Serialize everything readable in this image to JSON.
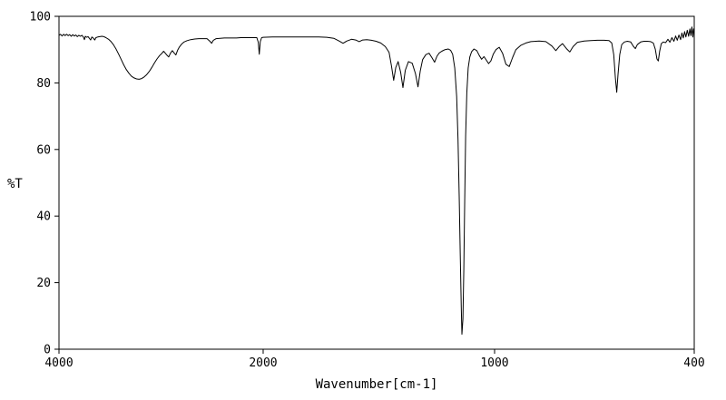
{
  "figure": {
    "background": "#ffffff",
    "line_color": "#000000",
    "kind": "infrared-transmittance-spectrum"
  },
  "chart_data": {
    "type": "line",
    "title": "",
    "xlabel": "Wavenumber[cm-1]",
    "ylabel": "%T",
    "xlim": [
      4000,
      400
    ],
    "ylim": [
      0,
      100
    ],
    "grid": false,
    "legend": "none",
    "x_axis_direction": "high-to-low left-to-right",
    "x_scale": "piecewise-linear (compressed above 2000 cm-1)",
    "x_ticks": [
      {
        "value": 4000,
        "label": "4000",
        "pos": 0.0
      },
      {
        "value": 2000,
        "label": "2000",
        "pos": 0.3214
      },
      {
        "value": 1000,
        "label": "1000",
        "pos": 0.6857
      },
      {
        "value": 400,
        "label": "400",
        "pos": 1.0
      }
    ],
    "y_ticks": [
      {
        "value": 100,
        "label": "100"
      },
      {
        "value": 80,
        "label": "80"
      },
      {
        "value": 60,
        "label": "60"
      },
      {
        "value": 40,
        "label": "40"
      },
      {
        "value": 20,
        "label": "20"
      },
      {
        "value": 0,
        "label": "0"
      }
    ],
    "baseline_percentT": 94,
    "major_absorption_bands_cm1": [
      {
        "center": 3200,
        "minT": 81,
        "shape": "broad"
      },
      {
        "center": 2925,
        "minT": 88,
        "shape": "sharp"
      },
      {
        "center": 2855,
        "minT": 88,
        "shape": "sharp"
      },
      {
        "center": 2038,
        "minT": 88.6,
        "shape": "narrow spike"
      },
      {
        "center": 1436,
        "minT": 80.8,
        "shape": "sharp"
      },
      {
        "center": 1396,
        "minT": 78.6,
        "shape": "sharp"
      },
      {
        "center": 1331,
        "minT": 78.8,
        "shape": "sharp"
      },
      {
        "center": 1259,
        "minT": 86.2,
        "shape": "sharp"
      },
      {
        "center": 1141,
        "minT": 4.5,
        "shape": "very strong sharp"
      },
      {
        "center": 1026,
        "minT": 85.8,
        "shape": "medium"
      },
      {
        "center": 956,
        "minT": 84.9,
        "shape": "medium"
      },
      {
        "center": 633,
        "minT": 77.2,
        "shape": "sharp"
      },
      {
        "center": 508,
        "minT": 86.6,
        "shape": "small"
      }
    ],
    "points": [
      [
        4000,
        94.3
      ],
      [
        3985,
        94.6
      ],
      [
        3970,
        94.1
      ],
      [
        3955,
        94.6
      ],
      [
        3940,
        94.2
      ],
      [
        3925,
        94.6
      ],
      [
        3910,
        94.2
      ],
      [
        3895,
        94.5
      ],
      [
        3880,
        94.0
      ],
      [
        3865,
        94.5
      ],
      [
        3850,
        94.1
      ],
      [
        3835,
        94.4
      ],
      [
        3820,
        93.9
      ],
      [
        3805,
        94.3
      ],
      [
        3790,
        94.0
      ],
      [
        3775,
        94.3
      ],
      [
        3760,
        93.7
      ],
      [
        3751,
        93.0
      ],
      [
        3742,
        94.0
      ],
      [
        3730,
        93.7
      ],
      [
        3715,
        93.9
      ],
      [
        3700,
        93.3
      ],
      [
        3690,
        92.9
      ],
      [
        3678,
        93.8
      ],
      [
        3665,
        93.5
      ],
      [
        3650,
        92.9
      ],
      [
        3638,
        93.6
      ],
      [
        3620,
        93.8
      ],
      [
        3600,
        93.9
      ],
      [
        3580,
        94.0
      ],
      [
        3560,
        93.9
      ],
      [
        3540,
        93.6
      ],
      [
        3515,
        93.1
      ],
      [
        3490,
        92.4
      ],
      [
        3465,
        91.4
      ],
      [
        3440,
        90.1
      ],
      [
        3415,
        88.6
      ],
      [
        3390,
        87.0
      ],
      [
        3365,
        85.4
      ],
      [
        3340,
        84.0
      ],
      [
        3315,
        82.9
      ],
      [
        3290,
        82.0
      ],
      [
        3265,
        81.5
      ],
      [
        3240,
        81.2
      ],
      [
        3215,
        81.1
      ],
      [
        3190,
        81.3
      ],
      [
        3165,
        81.8
      ],
      [
        3140,
        82.5
      ],
      [
        3115,
        83.5
      ],
      [
        3090,
        84.7
      ],
      [
        3065,
        86.0
      ],
      [
        3040,
        87.2
      ],
      [
        3015,
        88.2
      ],
      [
        2995,
        88.8
      ],
      [
        2975,
        89.5
      ],
      [
        2958,
        88.9
      ],
      [
        2942,
        88.3
      ],
      [
        2925,
        87.8
      ],
      [
        2908,
        88.9
      ],
      [
        2890,
        89.7
      ],
      [
        2872,
        89.0
      ],
      [
        2855,
        88.4
      ],
      [
        2838,
        89.8
      ],
      [
        2820,
        90.8
      ],
      [
        2800,
        91.6
      ],
      [
        2775,
        92.3
      ],
      [
        2745,
        92.7
      ],
      [
        2710,
        93.0
      ],
      [
        2670,
        93.2
      ],
      [
        2630,
        93.3
      ],
      [
        2590,
        93.3
      ],
      [
        2550,
        93.3
      ],
      [
        2522,
        92.5
      ],
      [
        2505,
        91.9
      ],
      [
        2488,
        92.8
      ],
      [
        2460,
        93.3
      ],
      [
        2420,
        93.4
      ],
      [
        2380,
        93.5
      ],
      [
        2340,
        93.5
      ],
      [
        2300,
        93.5
      ],
      [
        2260,
        93.5
      ],
      [
        2220,
        93.6
      ],
      [
        2180,
        93.6
      ],
      [
        2140,
        93.6
      ],
      [
        2100,
        93.6
      ],
      [
        2062,
        93.6
      ],
      [
        2048,
        92.2
      ],
      [
        2038,
        88.6
      ],
      [
        2028,
        92.4
      ],
      [
        2015,
        93.6
      ],
      [
        2000,
        93.7
      ],
      [
        1960,
        93.8
      ],
      [
        1920,
        93.8
      ],
      [
        1880,
        93.8
      ],
      [
        1840,
        93.8
      ],
      [
        1800,
        93.8
      ],
      [
        1760,
        93.8
      ],
      [
        1725,
        93.7
      ],
      [
        1695,
        93.4
      ],
      [
        1672,
        92.6
      ],
      [
        1655,
        91.9
      ],
      [
        1638,
        92.6
      ],
      [
        1618,
        93.1
      ],
      [
        1600,
        92.9
      ],
      [
        1585,
        92.4
      ],
      [
        1570,
        92.9
      ],
      [
        1552,
        93.0
      ],
      [
        1532,
        92.8
      ],
      [
        1512,
        92.5
      ],
      [
        1492,
        92.0
      ],
      [
        1472,
        90.9
      ],
      [
        1456,
        89.2
      ],
      [
        1446,
        85.2
      ],
      [
        1436,
        80.8
      ],
      [
        1427,
        84.6
      ],
      [
        1417,
        86.4
      ],
      [
        1406,
        83.2
      ],
      [
        1396,
        78.6
      ],
      [
        1386,
        83.8
      ],
      [
        1372,
        86.4
      ],
      [
        1356,
        85.9
      ],
      [
        1342,
        82.8
      ],
      [
        1331,
        78.8
      ],
      [
        1321,
        83.6
      ],
      [
        1311,
        87.0
      ],
      [
        1297,
        88.5
      ],
      [
        1283,
        88.9
      ],
      [
        1271,
        87.6
      ],
      [
        1259,
        86.2
      ],
      [
        1249,
        88.0
      ],
      [
        1239,
        89.0
      ],
      [
        1228,
        89.5
      ],
      [
        1214,
        90.0
      ],
      [
        1200,
        90.2
      ],
      [
        1190,
        89.8
      ],
      [
        1181,
        88.6
      ],
      [
        1172,
        84.5
      ],
      [
        1164,
        76.0
      ],
      [
        1158,
        63.0
      ],
      [
        1153,
        46.0
      ],
      [
        1148,
        28.0
      ],
      [
        1144,
        12.5
      ],
      [
        1141,
        4.5
      ],
      [
        1137,
        9.0
      ],
      [
        1133,
        24.0
      ],
      [
        1129,
        45.0
      ],
      [
        1125,
        64.0
      ],
      [
        1120,
        77.0
      ],
      [
        1114,
        84.5
      ],
      [
        1107,
        87.8
      ],
      [
        1099,
        89.4
      ],
      [
        1089,
        90.2
      ],
      [
        1077,
        89.7
      ],
      [
        1066,
        88.2
      ],
      [
        1056,
        87.1
      ],
      [
        1046,
        87.9
      ],
      [
        1036,
        86.9
      ],
      [
        1026,
        85.8
      ],
      [
        1016,
        86.6
      ],
      [
        1006,
        88.6
      ],
      [
        996,
        90.0
      ],
      [
        986,
        90.7
      ],
      [
        976,
        88.9
      ],
      [
        966,
        85.6
      ],
      [
        956,
        84.9
      ],
      [
        946,
        87.6
      ],
      [
        936,
        90.0
      ],
      [
        921,
        91.3
      ],
      [
        906,
        92.0
      ],
      [
        891,
        92.4
      ],
      [
        866,
        92.6
      ],
      [
        846,
        92.4
      ],
      [
        828,
        91.1
      ],
      [
        816,
        89.7
      ],
      [
        806,
        90.9
      ],
      [
        796,
        91.8
      ],
      [
        784,
        90.3
      ],
      [
        774,
        89.3
      ],
      [
        764,
        90.9
      ],
      [
        751,
        92.2
      ],
      [
        731,
        92.6
      ],
      [
        711,
        92.7
      ],
      [
        691,
        92.8
      ],
      [
        671,
        92.8
      ],
      [
        656,
        92.7
      ],
      [
        648,
        92.0
      ],
      [
        642,
        88.5
      ],
      [
        637,
        81.5
      ],
      [
        633,
        77.2
      ],
      [
        629,
        82.5
      ],
      [
        624,
        88.5
      ],
      [
        618,
        91.5
      ],
      [
        610,
        92.3
      ],
      [
        601,
        92.5
      ],
      [
        591,
        92.3
      ],
      [
        583,
        91.0
      ],
      [
        577,
        90.3
      ],
      [
        571,
        91.5
      ],
      [
        561,
        92.3
      ],
      [
        551,
        92.5
      ],
      [
        541,
        92.5
      ],
      [
        531,
        92.4
      ],
      [
        523,
        92.0
      ],
      [
        517,
        90.1
      ],
      [
        512,
        87.2
      ],
      [
        508,
        86.6
      ],
      [
        504,
        89.5
      ],
      [
        499,
        91.8
      ],
      [
        493,
        92.3
      ],
      [
        486,
        92.1
      ],
      [
        479,
        93.1
      ],
      [
        473,
        92.2
      ],
      [
        467,
        93.6
      ],
      [
        461,
        92.5
      ],
      [
        456,
        94.1
      ],
      [
        451,
        92.8
      ],
      [
        446,
        94.4
      ],
      [
        441,
        93.0
      ],
      [
        437,
        95.0
      ],
      [
        433,
        93.5
      ],
      [
        429,
        95.4
      ],
      [
        425,
        93.8
      ],
      [
        421,
        95.8
      ],
      [
        417,
        94.0
      ],
      [
        413,
        96.2
      ],
      [
        410,
        94.2
      ],
      [
        407,
        96.8
      ],
      [
        404,
        93.8
      ],
      [
        402,
        96.2
      ],
      [
        400,
        95.3
      ]
    ]
  }
}
